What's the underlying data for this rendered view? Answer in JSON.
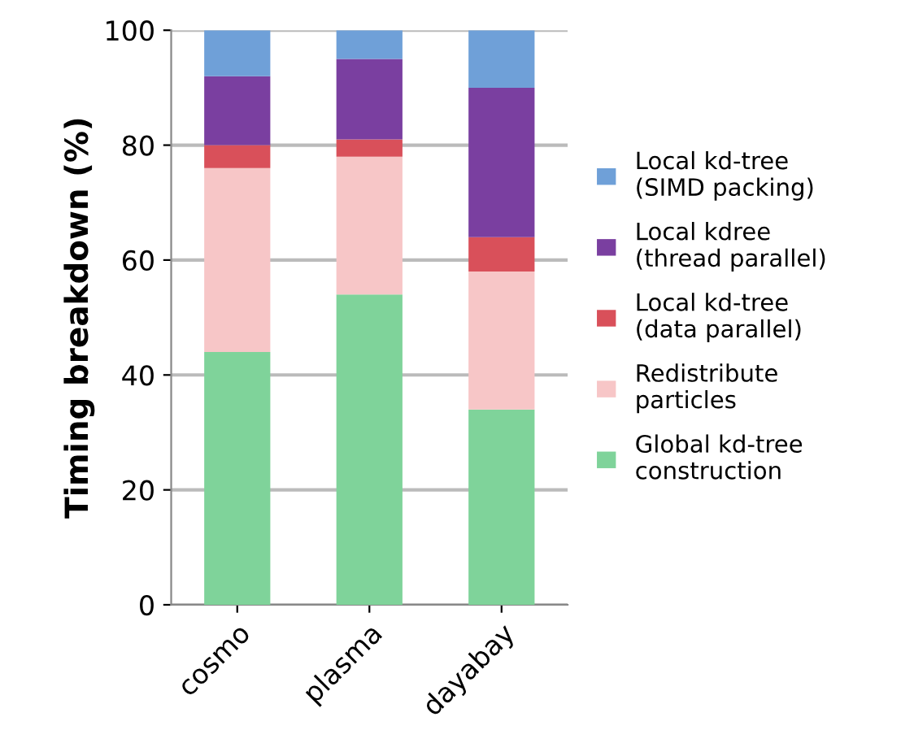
{
  "chart_data": {
    "type": "bar",
    "stacked": true,
    "ylabel": "Timing breakdown (%)",
    "categories": [
      "cosmo",
      "plasma",
      "dayabay"
    ],
    "series": [
      {
        "name": "Global kd-tree\nconstruction",
        "color": "#7fd39a",
        "values": [
          44,
          54,
          34
        ]
      },
      {
        "name": "Redistribute\nparticles",
        "color": "#f7c6c7",
        "values": [
          32,
          24,
          24
        ]
      },
      {
        "name": "Local kd-tree\n(data parallel)",
        "color": "#d9505a",
        "values": [
          4,
          3,
          6
        ]
      },
      {
        "name": "Local kdree\n(thread parallel)",
        "color": "#7a3fa0",
        "values": [
          12,
          14,
          26
        ]
      },
      {
        "name": "Local kd-tree\n(SIMD packing)",
        "color": "#6fa0d8",
        "values": [
          8,
          5,
          10
        ]
      }
    ],
    "ylim": [
      0,
      100
    ],
    "yticks": [
      0,
      20,
      40,
      60,
      80,
      100
    ],
    "grid": "y",
    "legend": "right"
  }
}
